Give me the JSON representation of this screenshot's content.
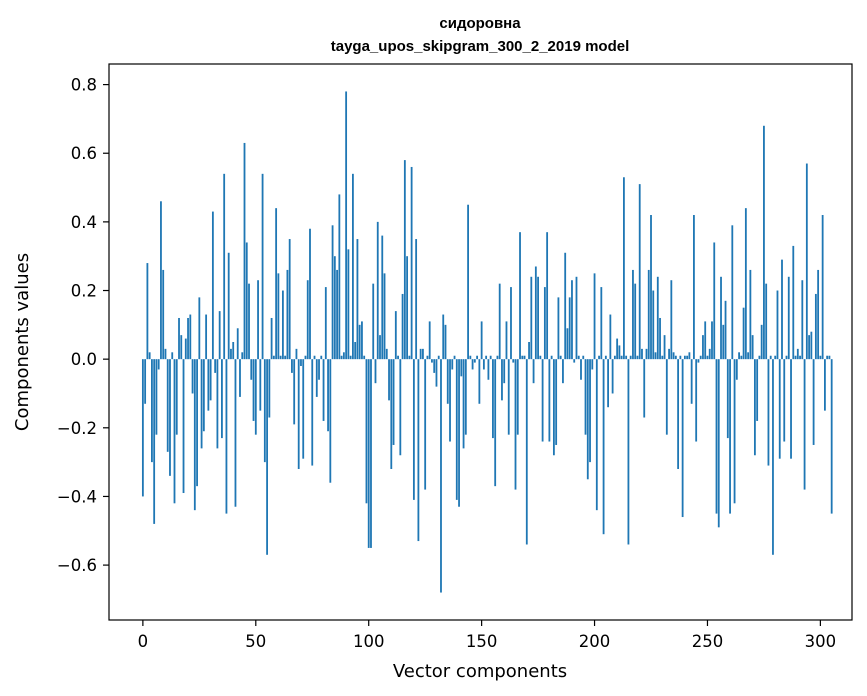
{
  "chart_data": {
    "type": "bar",
    "title": "сидоровна",
    "subtitle": "tayga_upos_skipgram_300_2_2019 model",
    "xlabel": "Vector components",
    "ylabel": "Components values",
    "xlim": [
      -15,
      314
    ],
    "ylim": [
      -0.76,
      0.86
    ],
    "xticks": [
      0,
      50,
      100,
      150,
      200,
      250,
      300
    ],
    "xtick_labels": [
      "0",
      "50",
      "100",
      "150",
      "200",
      "250",
      "300"
    ],
    "yticks": [
      -0.6,
      -0.4,
      -0.2,
      0.0,
      0.2,
      0.4,
      0.6,
      0.8
    ],
    "ytick_labels": [
      "−0.6",
      "−0.4",
      "−0.2",
      "0.0",
      "0.2",
      "0.4",
      "0.6",
      "0.8"
    ],
    "bar_color": "#1f77b4",
    "grid": false,
    "series": [
      {
        "values": [
          -0.4,
          -0.13,
          0.28,
          0.02,
          -0.3,
          -0.48,
          -0.22,
          -0.03,
          0.46,
          0.26,
          0.03,
          -0.27,
          -0.34,
          0.02,
          -0.42,
          -0.22,
          0.12,
          0.07,
          -0.39,
          0.06,
          0.12,
          0.13,
          -0.1,
          -0.44,
          -0.37,
          0.18,
          -0.26,
          -0.21,
          0.13,
          -0.15,
          -0.12,
          0.43,
          -0.04,
          -0.26,
          0.14,
          -0.23,
          0.54,
          -0.45,
          0.31,
          0.03,
          0.05,
          -0.43,
          0.09,
          -0.11,
          0.02,
          0.63,
          0.34,
          0.22,
          -0.06,
          -0.18,
          -0.22,
          0.23,
          -0.15,
          0.54,
          -0.3,
          -0.57,
          -0.17,
          0.12,
          0.01,
          0.44,
          0.25,
          0.01,
          0.2,
          0.01,
          0.26,
          0.35,
          -0.04,
          -0.19,
          0.03,
          -0.32,
          -0.02,
          -0.29,
          0.01,
          0.23,
          0.38,
          -0.31,
          0.01,
          -0.11,
          -0.06,
          0.01,
          -0.18,
          0.21,
          -0.21,
          -0.36,
          0.39,
          0.3,
          0.26,
          0.48,
          0.01,
          0.02,
          0.78,
          0.32,
          0.01,
          0.54,
          0.05,
          0.35,
          0.1,
          0.11,
          0.01,
          -0.42,
          -0.55,
          -0.55,
          0.22,
          -0.07,
          0.4,
          0.07,
          0.36,
          0.25,
          0.03,
          -0.12,
          -0.32,
          -0.25,
          0.14,
          0.01,
          -0.28,
          0.19,
          0.58,
          0.3,
          0.01,
          0.56,
          -0.41,
          0.35,
          -0.53,
          0.03,
          0.03,
          -0.38,
          0.01,
          0.11,
          -0.01,
          -0.04,
          -0.08,
          0.01,
          -0.68,
          0.13,
          0.1,
          -0.13,
          -0.24,
          -0.03,
          0.01,
          -0.41,
          -0.43,
          -0.05,
          -0.26,
          -0.22,
          0.45,
          0.01,
          -0.03,
          -0.01,
          0.01,
          -0.13,
          0.11,
          -0.03,
          0.01,
          -0.06,
          0.01,
          -0.23,
          -0.37,
          0.01,
          0.22,
          -0.12,
          -0.07,
          0.11,
          -0.22,
          0.21,
          -0.01,
          -0.38,
          -0.22,
          0.37,
          0.01,
          0.01,
          -0.54,
          0.05,
          0.24,
          -0.07,
          0.27,
          0.24,
          0.01,
          -0.24,
          0.21,
          0.37,
          -0.24,
          0.01,
          -0.28,
          -0.25,
          0.18,
          0.01,
          -0.07,
          0.31,
          0.09,
          0.18,
          0.23,
          -0.01,
          0.24,
          0.01,
          -0.06,
          0.01,
          -0.22,
          -0.35,
          -0.3,
          -0.03,
          0.25,
          -0.44,
          0.01,
          0.21,
          -0.51,
          0.01,
          -0.14,
          0.13,
          -0.1,
          0.01,
          0.06,
          0.04,
          0.01,
          0.53,
          0.01,
          -0.54,
          0.01,
          0.26,
          0.22,
          0.01,
          0.51,
          0.03,
          -0.17,
          0.03,
          0.26,
          0.42,
          0.2,
          0.02,
          0.24,
          0.12,
          0.01,
          0.07,
          -0.22,
          0.03,
          0.23,
          0.02,
          0.01,
          -0.32,
          0.01,
          -0.46,
          0.01,
          0.01,
          0.02,
          -0.13,
          0.42,
          -0.24,
          -0.01,
          0.01,
          0.07,
          0.11,
          0.01,
          0.03,
          0.11,
          0.34,
          -0.45,
          -0.49,
          0.24,
          0.1,
          0.17,
          -0.23,
          -0.45,
          0.39,
          -0.42,
          -0.06,
          0.02,
          0.01,
          0.15,
          0.44,
          0.02,
          0.26,
          0.07,
          -0.28,
          -0.18,
          0.01,
          0.1,
          0.68,
          0.22,
          -0.31,
          0.01,
          -0.57,
          0.01,
          0.2,
          -0.29,
          0.29,
          -0.24,
          0.01,
          0.24,
          -0.29,
          0.33,
          0.01,
          0.03,
          0.01,
          0.23,
          -0.38,
          0.57,
          0.07,
          0.08,
          -0.25,
          0.19,
          0.26,
          0.01,
          0.42,
          -0.15,
          0.01,
          0.01,
          -0.45
        ]
      }
    ]
  }
}
